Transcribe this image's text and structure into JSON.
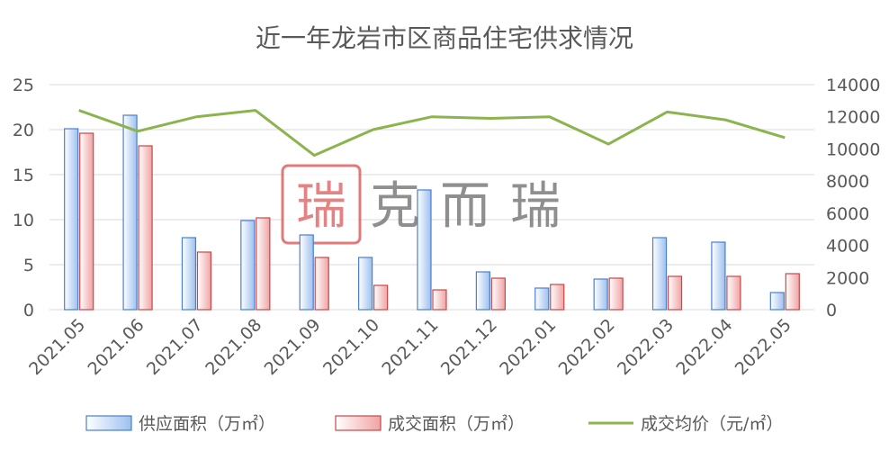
{
  "chart_data": {
    "type": "bar",
    "title": "近一年龙岩市区商品住宅供求情况",
    "categories": [
      "2021.05",
      "2021.06",
      "2021.07",
      "2021.08",
      "2021.09",
      "2021.10",
      "2021.11",
      "2021.12",
      "2022.01",
      "2022.02",
      "2022.03",
      "2022.04",
      "2022.05"
    ],
    "series": [
      {
        "name": "供应面积（万㎡）",
        "kind": "bar",
        "axis": "left",
        "color": "#4a7fd0",
        "values": [
          20.1,
          21.6,
          8.0,
          9.9,
          8.3,
          5.8,
          13.3,
          4.2,
          2.4,
          3.4,
          8.0,
          7.5,
          1.9
        ]
      },
      {
        "name": "成交面积（万㎡）",
        "kind": "bar",
        "axis": "left",
        "color": "#c84848",
        "values": [
          19.6,
          18.2,
          6.4,
          10.2,
          5.8,
          2.7,
          2.2,
          3.5,
          2.8,
          3.5,
          3.7,
          3.7,
          4.0
        ]
      },
      {
        "name": "成交均价（元/㎡）",
        "kind": "line",
        "axis": "right",
        "color": "#8cb44e",
        "values": [
          12400,
          11100,
          12000,
          12400,
          9600,
          11200,
          12000,
          11900,
          12000,
          10300,
          12300,
          11800,
          10700
        ]
      }
    ],
    "y_left": {
      "min": 0,
      "max": 25,
      "ticks": [
        0,
        5,
        10,
        15,
        20,
        25
      ]
    },
    "y_right": {
      "min": 0,
      "max": 14000,
      "ticks": [
        0,
        2000,
        4000,
        6000,
        8000,
        10000,
        12000,
        14000
      ]
    },
    "legend_position": "bottom",
    "grid": true
  },
  "watermark": {
    "text": "克而瑞",
    "seal_color": "#d8504f",
    "text_color": "#6a6a6a"
  }
}
